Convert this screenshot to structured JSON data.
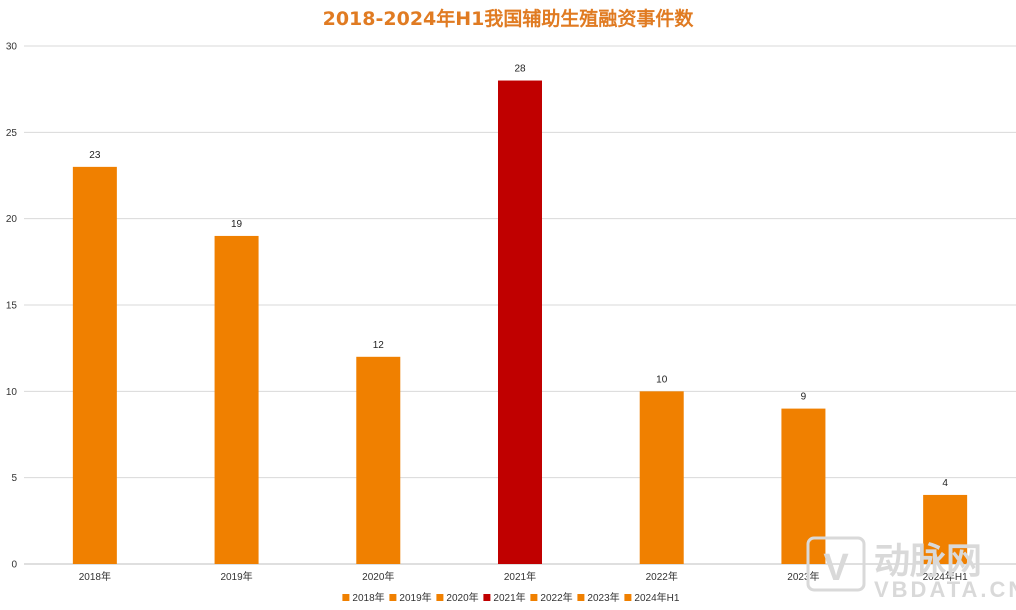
{
  "chart_data": {
    "type": "bar",
    "title": "2018-2024年H1我国辅助生殖融资事件数",
    "xlabel": "",
    "ylabel": "",
    "categories": [
      "2018年",
      "2019年",
      "2020年",
      "2021年",
      "2022年",
      "2023年",
      "2024年H1"
    ],
    "values": [
      23,
      19,
      12,
      28,
      10,
      9,
      4
    ],
    "colors": [
      "#f08000",
      "#f08000",
      "#f08000",
      "#c00000",
      "#f08000",
      "#f08000",
      "#f08000"
    ],
    "ylim": [
      0,
      30
    ],
    "yticks": [
      0,
      5,
      10,
      15,
      20,
      25,
      30
    ],
    "grid": true,
    "legend_position": "bottom"
  },
  "watermark": {
    "brand": "动脉网",
    "url": "VBDATA.CN",
    "color": "#d9d9d9"
  }
}
